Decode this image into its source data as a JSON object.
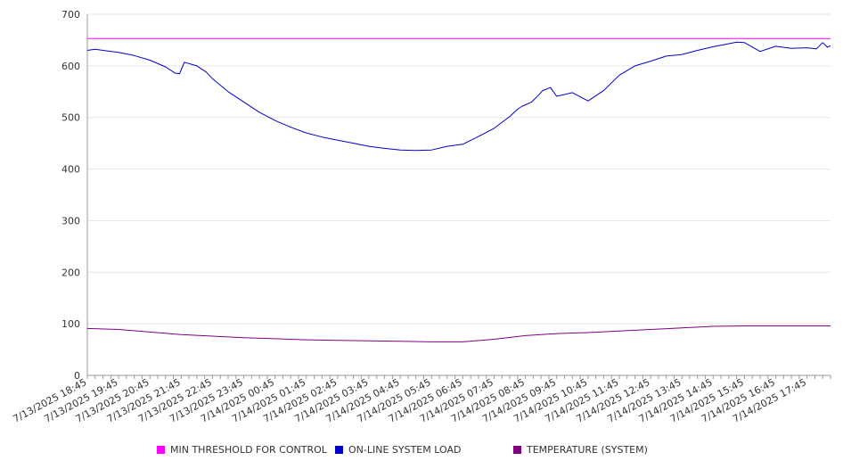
{
  "chart_data": {
    "type": "line",
    "y_ticks": [
      0,
      100,
      200,
      300,
      400,
      500,
      600,
      700
    ],
    "ylim": [
      0,
      700
    ],
    "x_tick_labels": [
      "7/13/2025 18:45",
      "7/13/2025 19:45",
      "7/13/2025 20:45",
      "7/13/2025 21:45",
      "7/13/2025 22:45",
      "7/13/2025 23:45",
      "7/14/2025 00:45",
      "7/14/2025 01:45",
      "7/14/2025 02:45",
      "7/14/2025 03:45",
      "7/14/2025 04:45",
      "7/14/2025 05:45",
      "7/14/2025 06:45",
      "7/14/2025 07:45",
      "7/14/2025 08:45",
      "7/14/2025 09:45",
      "7/14/2025 10:45",
      "7/14/2025 11:45",
      "7/14/2025 12:45",
      "7/14/2025 13:45",
      "7/14/2025 14:45",
      "7/14/2025 15:45",
      "7/14/2025 16:45",
      "7/14/2025 17:45"
    ],
    "x_range_hours": [
      0,
      23.75
    ],
    "grid": true,
    "legend_position": "bottom",
    "series": [
      {
        "name": "MIN THRESHOLD FOR CONTROL",
        "color": "#ff00ff",
        "x_hours": [
          0,
          23.75
        ],
        "values": [
          653,
          653
        ]
      },
      {
        "name": "ON-LINE SYSTEM LOAD",
        "color": "#0000cc",
        "x_hours": [
          0,
          0.25,
          0.5,
          1.0,
          1.5,
          2.0,
          2.5,
          2.75,
          2.8,
          2.95,
          3.1,
          3.5,
          3.8,
          4.0,
          4.5,
          5.0,
          5.5,
          6.0,
          6.5,
          7.0,
          7.5,
          8.0,
          8.5,
          9.0,
          9.5,
          10.0,
          10.5,
          11.0,
          11.5,
          12.0,
          12.5,
          13.0,
          13.5,
          13.75,
          13.9,
          14.2,
          14.45,
          14.55,
          14.8,
          15.0,
          15.5,
          16.0,
          16.5,
          17.0,
          17.5,
          18.0,
          18.5,
          19.0,
          19.5,
          20.0,
          20.5,
          20.75,
          21.0,
          21.5,
          22.0,
          22.5,
          23.0,
          23.3,
          23.5,
          23.65,
          23.75
        ],
        "values": [
          630,
          632,
          630,
          626,
          620,
          611,
          598,
          588,
          586,
          585,
          607,
          600,
          588,
          575,
          550,
          530,
          510,
          494,
          481,
          470,
          462,
          456,
          450,
          444,
          440,
          437,
          436,
          437,
          444,
          448,
          463,
          479,
          502,
          516,
          522,
          530,
          545,
          552,
          558,
          541,
          548,
          532,
          552,
          582,
          600,
          609,
          619,
          622,
          630,
          637,
          643,
          646,
          645,
          628,
          638,
          634,
          635,
          633,
          645,
          636,
          639
        ]
      },
      {
        "name": "TEMPERATURE (SYSTEM)",
        "color": "#800080",
        "x_hours": [
          0,
          1.0,
          2.0,
          3.0,
          4.0,
          5.0,
          6.0,
          7.0,
          8.0,
          9.0,
          10.0,
          11.0,
          12.0,
          13.0,
          14.0,
          15.0,
          16.0,
          17.0,
          18.0,
          19.0,
          20.0,
          21.0,
          22.0,
          23.0,
          23.75
        ],
        "values": [
          91,
          89,
          84,
          79,
          76,
          73,
          71,
          69,
          68,
          67,
          66,
          65,
          65,
          70,
          77,
          81,
          83,
          86,
          89,
          92,
          95,
          96,
          96,
          96,
          96
        ]
      }
    ]
  }
}
